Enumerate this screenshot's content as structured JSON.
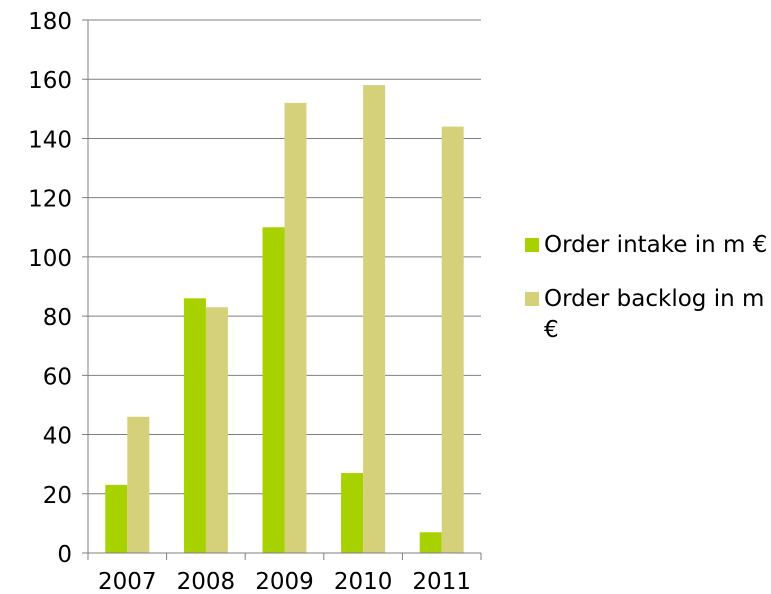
{
  "chart_data": {
    "type": "bar",
    "categories": [
      "2007",
      "2008",
      "2009",
      "2010",
      "2011"
    ],
    "series": [
      {
        "name": "Order intake in m €",
        "values": [
          23,
          86,
          110,
          27,
          7
        ],
        "color": "#a8d100"
      },
      {
        "name": "Order backlog in m €",
        "values": [
          46,
          83,
          152,
          158,
          144
        ],
        "color": "#d5d17a"
      }
    ],
    "title": "",
    "xlabel": "",
    "ylabel": "",
    "ylim": [
      0,
      180
    ],
    "yticks": [
      "0",
      "20",
      "40",
      "60",
      "80",
      "100",
      "120",
      "140",
      "160",
      "180"
    ],
    "grid": true,
    "legend_position": "right",
    "gridline_color": "#7f7f7f"
  }
}
